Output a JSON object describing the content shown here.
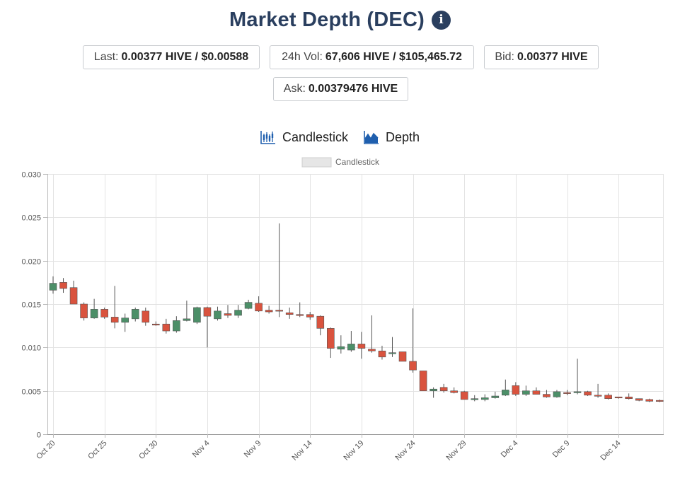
{
  "header": {
    "title": "Market Depth (DEC)",
    "info_icon": "info-circle-icon"
  },
  "stats": {
    "last": {
      "label": "Last:",
      "value": "0.00377 HIVE / $0.00588"
    },
    "vol": {
      "label": "24h Vol:",
      "value": "67,606 HIVE / $105,465.72"
    },
    "bid": {
      "label": "Bid:",
      "value": "0.00377 HIVE"
    },
    "ask": {
      "label": "Ask:",
      "value": "0.00379476 HIVE"
    }
  },
  "tabs": [
    {
      "label": "Candlestick",
      "icon": "candlestick-chart-icon"
    },
    {
      "label": "Depth",
      "icon": "depth-chart-icon"
    }
  ],
  "colors": {
    "up": "#4c8f68",
    "down": "#d9533e",
    "wick": "#555555",
    "title": "#2a3f5f",
    "icon_blue": "#1f5fae"
  },
  "chart_data": {
    "type": "candlestick",
    "legend": [
      "Candlestick"
    ],
    "legend_position": "top-center",
    "grid": true,
    "ylim": [
      0,
      0.03
    ],
    "y_ticks": [
      "0",
      "0.005",
      "0.010",
      "0.015",
      "0.020",
      "0.025",
      "0.030"
    ],
    "x_tick_labels": [
      "Oct 20",
      "Oct 25",
      "Oct 30",
      "Nov 4",
      "Nov 9",
      "Nov 14",
      "Nov 19",
      "Nov 24",
      "Nov 29",
      "Dec 4",
      "Dec 9",
      "Dec 14"
    ],
    "candles": [
      {
        "date": "Oct 20",
        "open": 0.0166,
        "high": 0.0182,
        "low": 0.0162,
        "close": 0.0174
      },
      {
        "date": "Oct 21",
        "open": 0.0175,
        "high": 0.018,
        "low": 0.0163,
        "close": 0.0168
      },
      {
        "date": "Oct 22",
        "open": 0.0169,
        "high": 0.0177,
        "low": 0.015,
        "close": 0.015
      },
      {
        "date": "Oct 23",
        "open": 0.015,
        "high": 0.0152,
        "low": 0.0131,
        "close": 0.0134
      },
      {
        "date": "Oct 24",
        "open": 0.0134,
        "high": 0.0156,
        "low": 0.0133,
        "close": 0.0144
      },
      {
        "date": "Oct 25",
        "open": 0.0144,
        "high": 0.0146,
        "low": 0.0133,
        "close": 0.0135
      },
      {
        "date": "Oct 26",
        "open": 0.0135,
        "high": 0.0171,
        "low": 0.0122,
        "close": 0.0129
      },
      {
        "date": "Oct 27",
        "open": 0.0129,
        "high": 0.0139,
        "low": 0.0118,
        "close": 0.0134
      },
      {
        "date": "Oct 28",
        "open": 0.0133,
        "high": 0.0146,
        "low": 0.013,
        "close": 0.0144
      },
      {
        "date": "Oct 29",
        "open": 0.0142,
        "high": 0.0146,
        "low": 0.0125,
        "close": 0.0129
      },
      {
        "date": "Oct 30",
        "open": 0.0127,
        "high": 0.013,
        "low": 0.0125,
        "close": 0.0126
      },
      {
        "date": "Oct 31",
        "open": 0.0127,
        "high": 0.0133,
        "low": 0.0116,
        "close": 0.0119
      },
      {
        "date": "Nov 1",
        "open": 0.0119,
        "high": 0.0136,
        "low": 0.0117,
        "close": 0.0131
      },
      {
        "date": "Nov 2",
        "open": 0.0131,
        "high": 0.0154,
        "low": 0.013,
        "close": 0.0133
      },
      {
        "date": "Nov 3",
        "open": 0.0129,
        "high": 0.0147,
        "low": 0.0127,
        "close": 0.0146
      },
      {
        "date": "Nov 4",
        "open": 0.0146,
        "high": 0.0147,
        "low": 0.01,
        "close": 0.0136
      },
      {
        "date": "Nov 5",
        "open": 0.0133,
        "high": 0.0147,
        "low": 0.0131,
        "close": 0.0142
      },
      {
        "date": "Nov 6",
        "open": 0.0139,
        "high": 0.0149,
        "low": 0.0134,
        "close": 0.0137
      },
      {
        "date": "Nov 7",
        "open": 0.0137,
        "high": 0.0149,
        "low": 0.0134,
        "close": 0.0143
      },
      {
        "date": "Nov 8",
        "open": 0.0145,
        "high": 0.0155,
        "low": 0.0144,
        "close": 0.0152
      },
      {
        "date": "Nov 9",
        "open": 0.0151,
        "high": 0.0159,
        "low": 0.0141,
        "close": 0.0142
      },
      {
        "date": "Nov 10",
        "open": 0.0143,
        "high": 0.0148,
        "low": 0.0139,
        "close": 0.0141
      },
      {
        "date": "Nov 11",
        "open": 0.0143,
        "high": 0.0243,
        "low": 0.0135,
        "close": 0.0142
      },
      {
        "date": "Nov 12",
        "open": 0.014,
        "high": 0.0146,
        "low": 0.0133,
        "close": 0.0138
      },
      {
        "date": "Nov 13",
        "open": 0.0138,
        "high": 0.0152,
        "low": 0.0135,
        "close": 0.0137
      },
      {
        "date": "Nov 14",
        "open": 0.0138,
        "high": 0.0141,
        "low": 0.0132,
        "close": 0.0135
      },
      {
        "date": "Nov 15",
        "open": 0.0136,
        "high": 0.0137,
        "low": 0.0114,
        "close": 0.0122
      },
      {
        "date": "Nov 16",
        "open": 0.0122,
        "high": 0.0123,
        "low": 0.0088,
        "close": 0.0099
      },
      {
        "date": "Nov 17",
        "open": 0.0098,
        "high": 0.0114,
        "low": 0.0093,
        "close": 0.0101
      },
      {
        "date": "Nov 18",
        "open": 0.0097,
        "high": 0.0119,
        "low": 0.0095,
        "close": 0.0104
      },
      {
        "date": "Nov 19",
        "open": 0.0104,
        "high": 0.0118,
        "low": 0.0087,
        "close": 0.0099
      },
      {
        "date": "Nov 20",
        "open": 0.0098,
        "high": 0.0137,
        "low": 0.0094,
        "close": 0.0096
      },
      {
        "date": "Nov 21",
        "open": 0.0096,
        "high": 0.0102,
        "low": 0.0086,
        "close": 0.0089
      },
      {
        "date": "Nov 22",
        "open": 0.0094,
        "high": 0.0112,
        "low": 0.0089,
        "close": 0.0094
      },
      {
        "date": "Nov 23",
        "open": 0.0095,
        "high": 0.0095,
        "low": 0.0084,
        "close": 0.0084
      },
      {
        "date": "Nov 24",
        "open": 0.0084,
        "high": 0.0145,
        "low": 0.0071,
        "close": 0.0074
      },
      {
        "date": "Nov 25",
        "open": 0.0073,
        "high": 0.0073,
        "low": 0.005,
        "close": 0.005
      },
      {
        "date": "Nov 26",
        "open": 0.005,
        "high": 0.0054,
        "low": 0.0042,
        "close": 0.0052
      },
      {
        "date": "Nov 27",
        "open": 0.0054,
        "high": 0.0058,
        "low": 0.0048,
        "close": 0.005
      },
      {
        "date": "Nov 28",
        "open": 0.005,
        "high": 0.0054,
        "low": 0.0047,
        "close": 0.0048
      },
      {
        "date": "Nov 29",
        "open": 0.0049,
        "high": 0.005,
        "low": 0.004,
        "close": 0.004
      },
      {
        "date": "Nov 30",
        "open": 0.004,
        "high": 0.0045,
        "low": 0.0038,
        "close": 0.0041
      },
      {
        "date": "Dec 1",
        "open": 0.004,
        "high": 0.0046,
        "low": 0.0038,
        "close": 0.0042
      },
      {
        "date": "Dec 2",
        "open": 0.0042,
        "high": 0.0049,
        "low": 0.0041,
        "close": 0.0044
      },
      {
        "date": "Dec 3",
        "open": 0.0045,
        "high": 0.0063,
        "low": 0.0044,
        "close": 0.0051
      },
      {
        "date": "Dec 4",
        "open": 0.0056,
        "high": 0.006,
        "low": 0.0044,
        "close": 0.0046
      },
      {
        "date": "Dec 5",
        "open": 0.0046,
        "high": 0.0056,
        "low": 0.0044,
        "close": 0.005
      },
      {
        "date": "Dec 6",
        "open": 0.005,
        "high": 0.0054,
        "low": 0.0046,
        "close": 0.0046
      },
      {
        "date": "Dec 7",
        "open": 0.0046,
        "high": 0.0051,
        "low": 0.0042,
        "close": 0.0043
      },
      {
        "date": "Dec 8",
        "open": 0.0043,
        "high": 0.0051,
        "low": 0.0042,
        "close": 0.0049
      },
      {
        "date": "Dec 9",
        "open": 0.0048,
        "high": 0.0051,
        "low": 0.0045,
        "close": 0.0047
      },
      {
        "date": "Dec 10",
        "open": 0.0048,
        "high": 0.0087,
        "low": 0.0046,
        "close": 0.0049
      },
      {
        "date": "Dec 11",
        "open": 0.0049,
        "high": 0.005,
        "low": 0.0044,
        "close": 0.0045
      },
      {
        "date": "Dec 12",
        "open": 0.0045,
        "high": 0.0058,
        "low": 0.0042,
        "close": 0.0044
      },
      {
        "date": "Dec 13",
        "open": 0.0045,
        "high": 0.0047,
        "low": 0.004,
        "close": 0.0041
      },
      {
        "date": "Dec 14",
        "open": 0.0043,
        "high": 0.0043,
        "low": 0.0041,
        "close": 0.0042
      },
      {
        "date": "Dec 15",
        "open": 0.0043,
        "high": 0.0047,
        "low": 0.004,
        "close": 0.0041
      },
      {
        "date": "Dec 16",
        "open": 0.0041,
        "high": 0.0041,
        "low": 0.0038,
        "close": 0.0039
      },
      {
        "date": "Dec 17",
        "open": 0.004,
        "high": 0.0041,
        "low": 0.0037,
        "close": 0.0038
      },
      {
        "date": "Dec 18",
        "open": 0.0039,
        "high": 0.004,
        "low": 0.0037,
        "close": 0.0038
      }
    ]
  }
}
